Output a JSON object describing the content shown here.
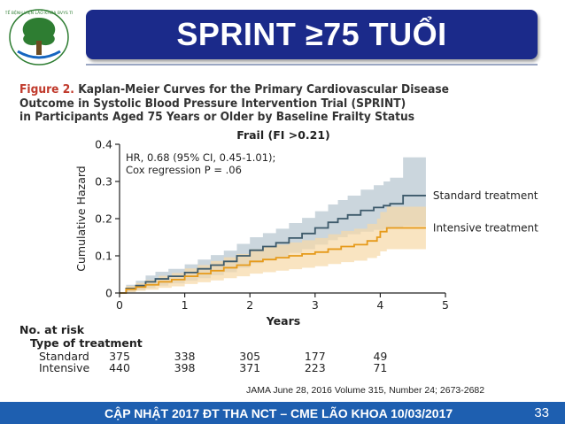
{
  "slide": {
    "title": "SPRINT ≥75 TUỔI",
    "logo_text": "SỞ Y TẾ BỆNH VIỆN LÃO KHOA BVYS TP.HCM",
    "citation": "JAMA June 28, 2016 Volume 315, Number 24; 2673-2682",
    "footer": "CẬP NHẬT 2017 ĐT THA NCT – CME LÃO KHOA 10/03/2017",
    "page_number": "33"
  },
  "figure": {
    "title_prefix": "Figure 2.",
    "title_line1": " Kaplan-Meier Curves for the Primary Cardiovascular Disease",
    "title_line2": "Outcome in Systolic Blood Pressure Intervention Trial (SPRINT)",
    "title_line3": "in Participants Aged 75 Years or Older by Baseline Frailty Status"
  },
  "chart_data": {
    "type": "line",
    "title": "Frail (FI >0.21)",
    "xlabel": "Years",
    "ylabel": "Cumulative Hazard",
    "xlim": [
      0,
      5
    ],
    "ylim": [
      0,
      0.4
    ],
    "x_ticks": [
      "0",
      "1",
      "2",
      "3",
      "4",
      "5"
    ],
    "y_ticks": [
      "0",
      "0.1",
      "0.2",
      "0.3",
      "0.4"
    ],
    "annotation_lines": [
      "HR, 0.68 (95% CI, 0.45-1.01);",
      "Cox regression P = .06"
    ],
    "series": [
      {
        "name": "Standard treatment",
        "color": "#3d5a6b",
        "band_color": "#b9c8d2",
        "points": [
          [
            0,
            0
          ],
          [
            0.1,
            0.012
          ],
          [
            0.25,
            0.02
          ],
          [
            0.4,
            0.03
          ],
          [
            0.55,
            0.038
          ],
          [
            0.75,
            0.045
          ],
          [
            1.0,
            0.055
          ],
          [
            1.2,
            0.065
          ],
          [
            1.4,
            0.075
          ],
          [
            1.6,
            0.085
          ],
          [
            1.8,
            0.1
          ],
          [
            2.0,
            0.115
          ],
          [
            2.2,
            0.125
          ],
          [
            2.4,
            0.135
          ],
          [
            2.6,
            0.148
          ],
          [
            2.8,
            0.16
          ],
          [
            3.0,
            0.175
          ],
          [
            3.2,
            0.19
          ],
          [
            3.35,
            0.2
          ],
          [
            3.5,
            0.21
          ],
          [
            3.7,
            0.222
          ],
          [
            3.9,
            0.23
          ],
          [
            4.05,
            0.235
          ],
          [
            4.15,
            0.24
          ],
          [
            4.3,
            0.24
          ],
          [
            4.35,
            0.262
          ],
          [
            4.7,
            0.262
          ]
        ],
        "ci_lower": [
          0,
          0.003,
          0.008,
          0.014,
          0.02,
          0.026,
          0.033,
          0.04,
          0.048,
          0.056,
          0.068,
          0.08,
          0.089,
          0.097,
          0.108,
          0.118,
          0.13,
          0.142,
          0.15,
          0.158,
          0.165,
          0.17,
          0.172,
          0.175,
          0.175,
          0.18,
          0.18
        ],
        "ci_upper": [
          0,
          0.022,
          0.033,
          0.047,
          0.057,
          0.065,
          0.077,
          0.09,
          0.102,
          0.114,
          0.132,
          0.15,
          0.161,
          0.173,
          0.188,
          0.202,
          0.22,
          0.238,
          0.25,
          0.262,
          0.278,
          0.29,
          0.3,
          0.31,
          0.31,
          0.365,
          0.365
        ]
      },
      {
        "name": "Intensive treatment",
        "color": "#e69a1a",
        "band_color": "#f6d9a6",
        "points": [
          [
            0,
            0
          ],
          [
            0.1,
            0.01
          ],
          [
            0.25,
            0.016
          ],
          [
            0.4,
            0.022
          ],
          [
            0.6,
            0.03
          ],
          [
            0.8,
            0.036
          ],
          [
            1.0,
            0.045
          ],
          [
            1.2,
            0.052
          ],
          [
            1.4,
            0.06
          ],
          [
            1.6,
            0.068
          ],
          [
            1.8,
            0.075
          ],
          [
            2.0,
            0.085
          ],
          [
            2.2,
            0.09
          ],
          [
            2.4,
            0.095
          ],
          [
            2.6,
            0.1
          ],
          [
            2.8,
            0.105
          ],
          [
            3.0,
            0.11
          ],
          [
            3.2,
            0.118
          ],
          [
            3.4,
            0.125
          ],
          [
            3.6,
            0.13
          ],
          [
            3.8,
            0.14
          ],
          [
            3.95,
            0.15
          ],
          [
            4.0,
            0.165
          ],
          [
            4.1,
            0.175
          ],
          [
            4.7,
            0.175
          ]
        ],
        "ci_lower": [
          0,
          0.002,
          0.006,
          0.009,
          0.014,
          0.018,
          0.024,
          0.029,
          0.034,
          0.04,
          0.045,
          0.052,
          0.056,
          0.06,
          0.064,
          0.068,
          0.072,
          0.078,
          0.083,
          0.087,
          0.094,
          0.1,
          0.112,
          0.118,
          0.118
        ],
        "ci_upper": [
          0,
          0.019,
          0.027,
          0.035,
          0.046,
          0.054,
          0.066,
          0.075,
          0.086,
          0.096,
          0.105,
          0.118,
          0.124,
          0.13,
          0.136,
          0.142,
          0.148,
          0.158,
          0.167,
          0.173,
          0.186,
          0.2,
          0.218,
          0.232,
          0.232
        ]
      }
    ]
  },
  "risk_table": {
    "header": "No. at risk",
    "subheader": "Type of treatment",
    "years": [
      0,
      1,
      2,
      3,
      4
    ],
    "rows": [
      {
        "label": "Standard",
        "values": [
          "375",
          "338",
          "305",
          "177",
          "49"
        ]
      },
      {
        "label": "Intensive",
        "values": [
          "440",
          "398",
          "371",
          "223",
          "71"
        ]
      }
    ]
  }
}
